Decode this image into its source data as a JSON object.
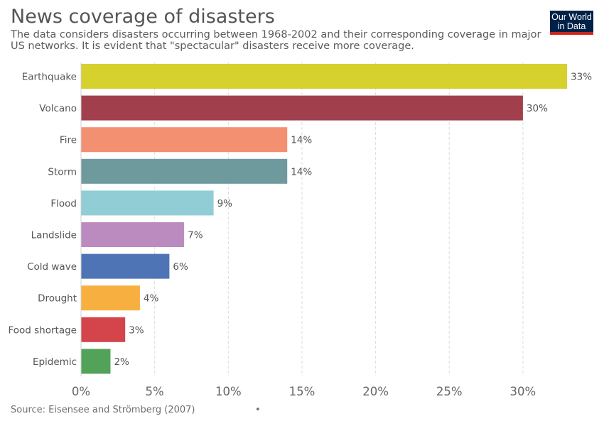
{
  "header": {
    "title": "News coverage of disasters",
    "subtitle": "The data considers disasters occurring between 1968-2002 and their corresponding coverage in major US networks. It is evident that \"spectacular\" disasters receive more coverage."
  },
  "logo": {
    "line1": "Our World",
    "line2": "in Data",
    "bg_color": "#002147",
    "accent_color": "#ce261e"
  },
  "footer": {
    "source": "Source: Eisensee and Strömberg (2007)",
    "dot": "•"
  },
  "chart_data": {
    "type": "bar",
    "orientation": "horizontal",
    "categories": [
      "Earthquake",
      "Volcano",
      "Fire",
      "Storm",
      "Flood",
      "Landslide",
      "Cold wave",
      "Drought",
      "Food shortage",
      "Epidemic"
    ],
    "values": [
      33,
      30,
      14,
      14,
      9,
      7,
      6,
      4,
      3,
      2
    ],
    "value_labels": [
      "33%",
      "30%",
      "14%",
      "14%",
      "9%",
      "7%",
      "6%",
      "4%",
      "3%",
      "2%"
    ],
    "colors": [
      "#d6d12d",
      "#a1404c",
      "#f39072",
      "#6e9a9e",
      "#90cdd4",
      "#bb8bbf",
      "#4f74b6",
      "#f7af40",
      "#d3454a",
      "#52a359"
    ],
    "xlim": [
      0,
      33
    ],
    "xticks": [
      0,
      5,
      10,
      15,
      20,
      25,
      30
    ],
    "xtick_labels": [
      "0%",
      "5%",
      "10%",
      "15%",
      "20%",
      "25%",
      "30%"
    ],
    "grid": "vertical dashed",
    "xlabel": "",
    "ylabel": ""
  }
}
